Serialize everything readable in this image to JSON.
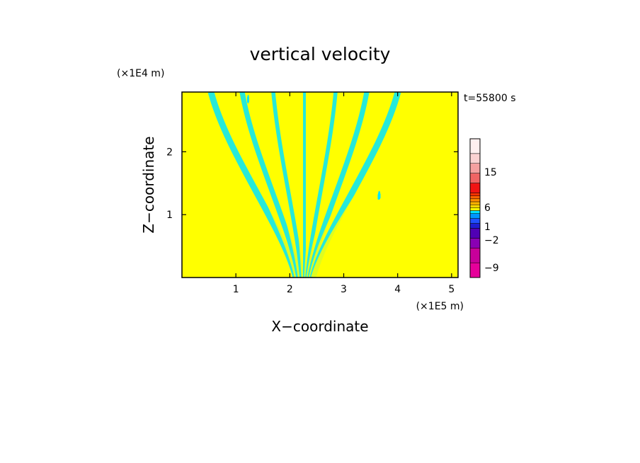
{
  "chart_data": {
    "type": "heatmap",
    "title": "vertical velocity",
    "xlabel": "X−coordinate",
    "ylabel": "Z−coordinate",
    "x_multiplier": "(×1E5 m)",
    "y_multiplier": "(×1E4 m)",
    "time_label": "t=55800 s",
    "xlim": [
      0,
      5.12
    ],
    "ylim": [
      0,
      2.95
    ],
    "x_ticks": [
      1,
      2,
      3,
      4,
      5
    ],
    "y_ticks": [
      1,
      2
    ],
    "colorbar": {
      "ticks": [
        15,
        6,
        1,
        -2,
        -9
      ],
      "levels": [
        -12,
        -9,
        -6,
        -4,
        -3,
        -2,
        -1.5,
        -1,
        -0.5,
        0,
        0.5,
        1,
        1.5,
        2,
        3,
        6,
        9,
        12,
        15,
        20
      ]
    },
    "dominant_fields": {
      "positive_color": "#ffff00",
      "negative_color": "#00e5ff"
    }
  },
  "colors": {
    "outline": "#000000",
    "background": "#ffffff",
    "cbar_swatches": [
      "#e6009a",
      "#c8009a",
      "#8a00b4",
      "#5000b4",
      "#1e1ed2",
      "#2050ff",
      "#0096ff",
      "#00e5ff",
      "#ffff00",
      "#ffd700",
      "#ffb400",
      "#ff8c00",
      "#ff6400",
      "#ff3200",
      "#f01414",
      "#f06464",
      "#f5a0a0",
      "#fad2d2",
      "#fff0f0"
    ]
  }
}
